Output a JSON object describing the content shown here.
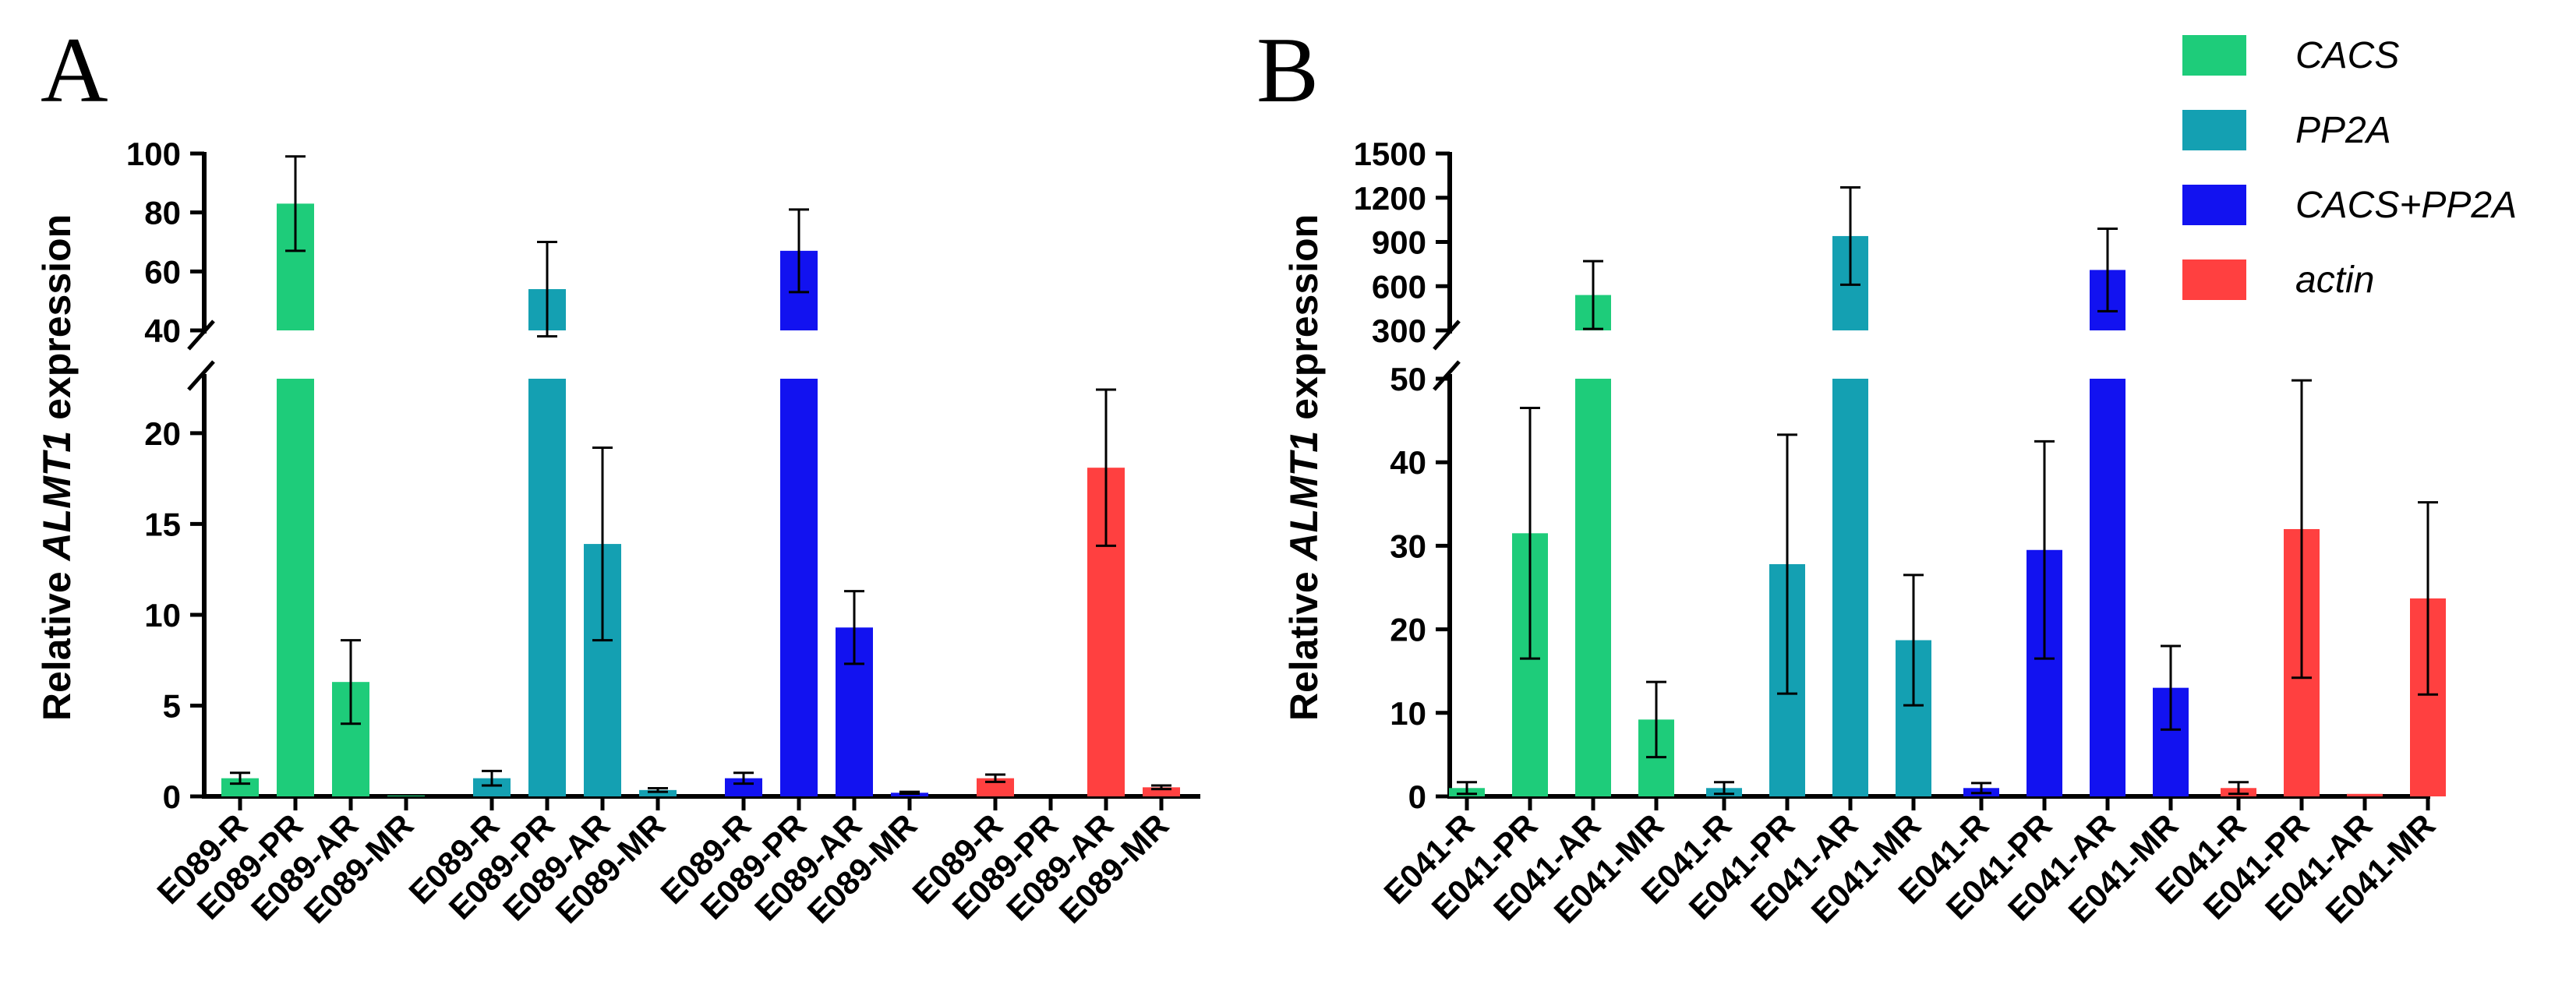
{
  "legend": [
    {
      "name": "CACS",
      "color": "#1ECC7A"
    },
    {
      "name": "PP2A",
      "color": "#14A0B2"
    },
    {
      "name": "CACS+PP2A",
      "color": "#1212F0"
    },
    {
      "name": "actin",
      "color": "#FF4040"
    }
  ],
  "chart_data": [
    {
      "panel": "A",
      "type": "bar",
      "ylabel_prefix": "Relative ",
      "ylabel_gene": "ALMT1",
      "ylabel_suffix": " expression",
      "broken_axis": true,
      "lower_ylim": [
        0,
        23
      ],
      "lower_ticks": [
        0,
        5,
        10,
        15,
        20
      ],
      "upper_ylim": [
        40,
        100
      ],
      "upper_ticks": [
        40,
        60,
        80,
        100
      ],
      "groups": [
        {
          "series": "CACS",
          "categories": [
            "E089-R",
            "E089-PR",
            "E089-AR",
            "E089-MR"
          ],
          "values": [
            1.0,
            83,
            6.3,
            0.05
          ],
          "errors": [
            0.3,
            16,
            2.3,
            0
          ]
        },
        {
          "series": "PP2A",
          "categories": [
            "E089-R",
            "E089-PR",
            "E089-AR",
            "E089-MR"
          ],
          "values": [
            1.0,
            54,
            13.9,
            0.35
          ],
          "errors": [
            0.4,
            16,
            5.3,
            0.1
          ]
        },
        {
          "series": "CACS+PP2A",
          "categories": [
            "E089-R",
            "E089-PR",
            "E089-AR",
            "E089-MR"
          ],
          "values": [
            1.0,
            67,
            9.3,
            0.2
          ],
          "errors": [
            0.3,
            14,
            2.0,
            0.05
          ]
        },
        {
          "series": "actin",
          "categories": [
            "E089-R",
            "E089-PR",
            "E089-AR",
            "E089-MR"
          ],
          "values": [
            1.0,
            0,
            18.1,
            0.5
          ],
          "errors": [
            0.2,
            0,
            4.3,
            0.1
          ]
        }
      ]
    },
    {
      "panel": "B",
      "type": "bar",
      "ylabel_prefix": "Relative ",
      "ylabel_gene": "ALMT1",
      "ylabel_suffix": " expression",
      "broken_axis": true,
      "lower_ylim": [
        0,
        50
      ],
      "lower_ticks": [
        0,
        10,
        20,
        30,
        40,
        50
      ],
      "upper_ylim": [
        300,
        1500
      ],
      "upper_ticks": [
        300,
        600,
        900,
        1200,
        1500
      ],
      "groups": [
        {
          "series": "CACS",
          "categories": [
            "E041-R",
            "E041-PR",
            "E041-AR",
            "E041-MR"
          ],
          "values": [
            1.0,
            31.5,
            540,
            9.2
          ],
          "errors": [
            0.7,
            15,
            230,
            4.5
          ]
        },
        {
          "series": "PP2A",
          "categories": [
            "E041-R",
            "E041-PR",
            "E041-AR",
            "E041-MR"
          ],
          "values": [
            1.0,
            27.8,
            940,
            18.7
          ],
          "errors": [
            0.7,
            15.5,
            330,
            7.8
          ]
        },
        {
          "series": "CACS+PP2A",
          "categories": [
            "E041-R",
            "E041-PR",
            "E041-AR",
            "E041-MR"
          ],
          "values": [
            1.0,
            29.5,
            710,
            13.0
          ],
          "errors": [
            0.6,
            13,
            280,
            5.0
          ]
        },
        {
          "series": "actin",
          "categories": [
            "E041-R",
            "E041-PR",
            "E041-AR",
            "E041-MR"
          ],
          "values": [
            1.0,
            32.0,
            0.3,
            23.7
          ],
          "errors": [
            0.7,
            17.8,
            0,
            11.5
          ]
        }
      ]
    }
  ]
}
